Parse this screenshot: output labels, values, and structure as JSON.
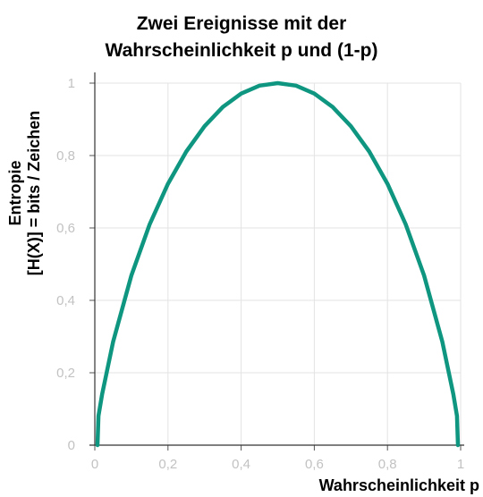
{
  "chart_data": {
    "type": "line",
    "title_lines": [
      "Zwei Ereignisse mit der",
      "Wahrscheinlichkeit p und (1-p)"
    ],
    "xlabel": "Wahrscheinlichkeit p",
    "ylabel_lines": [
      "Entropie",
      "[H(X)] = bits / Zeichen"
    ],
    "xlim": [
      0,
      1
    ],
    "ylim": [
      0,
      1
    ],
    "x_ticks": [
      "0",
      "0,2",
      "0,4",
      "0,6",
      "0,8",
      "1"
    ],
    "y_ticks": [
      "0",
      "0,2",
      "0,4",
      "0,6",
      "0,8",
      "1"
    ],
    "grid": true,
    "series": [
      {
        "color": "#0f9680",
        "x": [
          0.01,
          0.02,
          0.05,
          0.1,
          0.15,
          0.2,
          0.25,
          0.3,
          0.35,
          0.4,
          0.45,
          0.5,
          0.55,
          0.6,
          0.65,
          0.7,
          0.75,
          0.8,
          0.85,
          0.9,
          0.95,
          0.98,
          0.99
        ],
        "y": [
          0.081,
          0.141,
          0.286,
          0.469,
          0.61,
          0.722,
          0.811,
          0.881,
          0.934,
          0.971,
          0.993,
          1.0,
          0.993,
          0.971,
          0.934,
          0.881,
          0.811,
          0.722,
          0.61,
          0.469,
          0.286,
          0.141,
          0.081
        ]
      }
    ]
  }
}
